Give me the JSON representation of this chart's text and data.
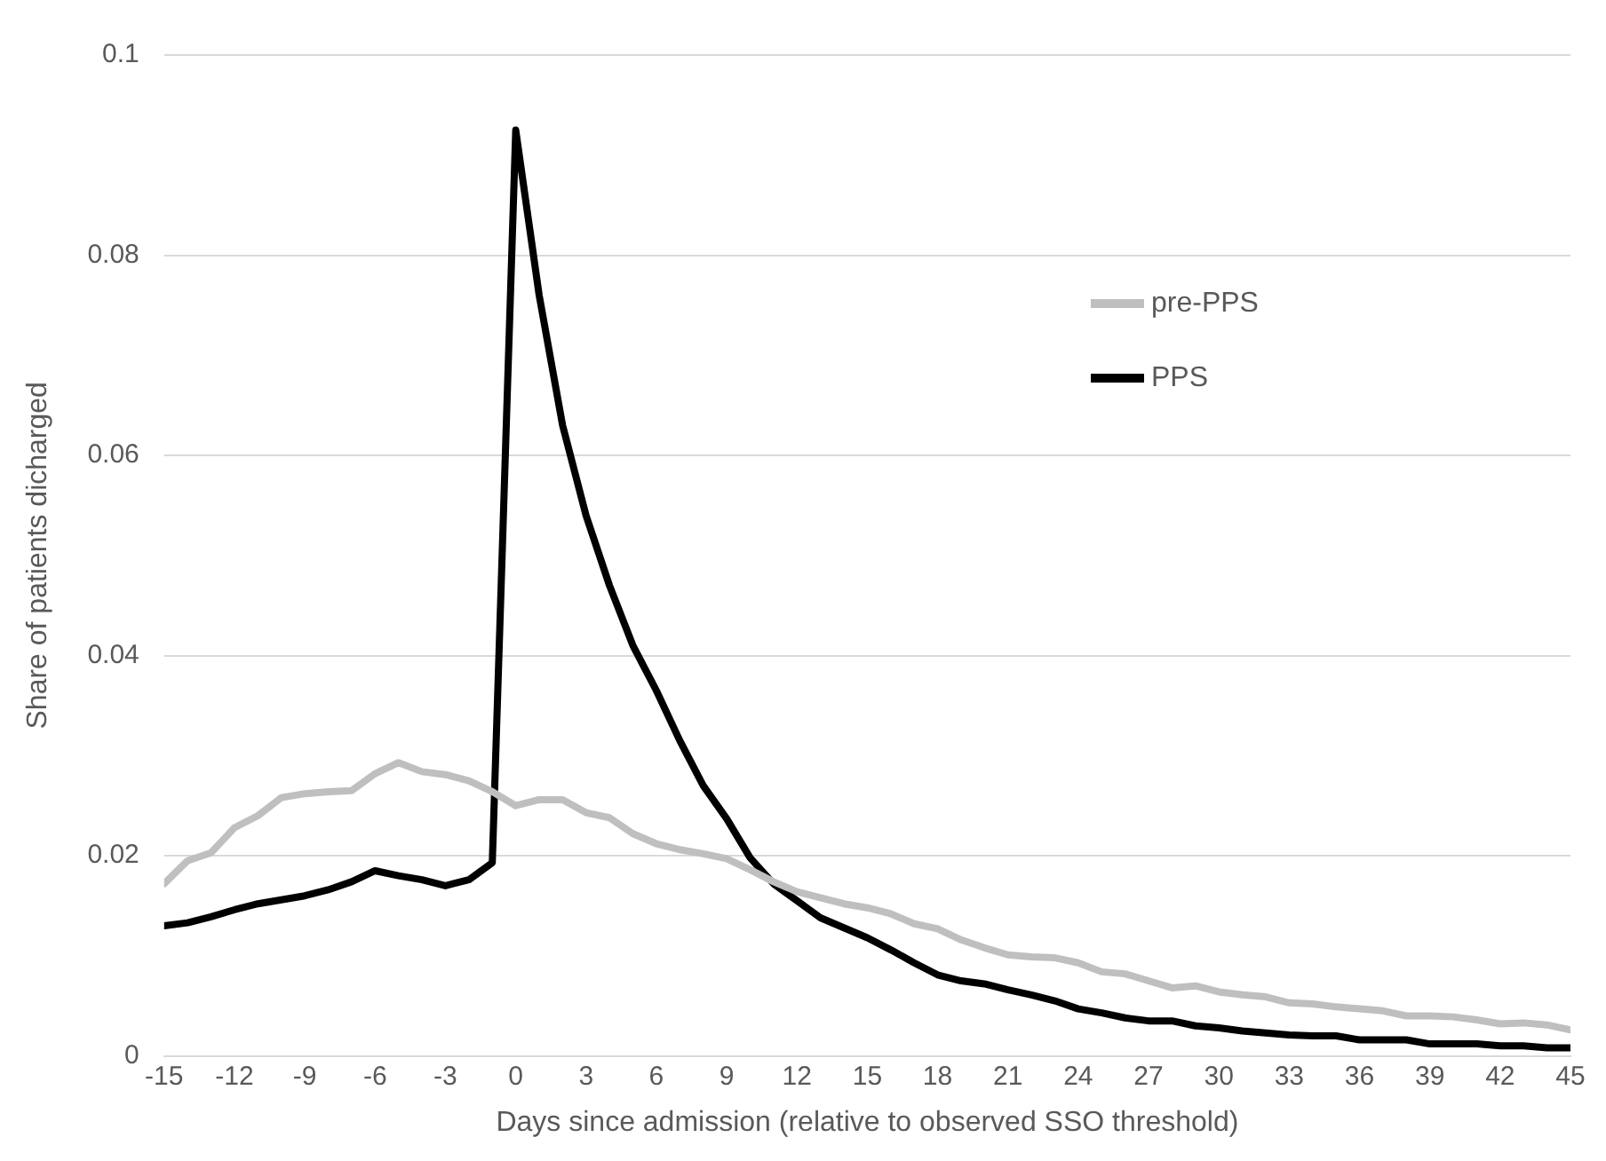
{
  "chart_data": {
    "type": "line",
    "xlabel": "Days since admission (relative to observed SSO threshold)",
    "ylabel": "Share of patients dicharged",
    "x": [
      -15,
      -14,
      -13,
      -12,
      -11,
      -10,
      -9,
      -8,
      -7,
      -6,
      -5,
      -4,
      -3,
      -2,
      -1,
      0,
      1,
      2,
      3,
      4,
      5,
      6,
      7,
      8,
      9,
      10,
      11,
      12,
      13,
      14,
      15,
      16,
      17,
      18,
      19,
      20,
      21,
      22,
      23,
      24,
      25,
      26,
      27,
      28,
      29,
      30,
      31,
      32,
      33,
      34,
      35,
      36,
      37,
      38,
      39,
      40,
      41,
      42,
      43,
      44,
      45
    ],
    "series": [
      {
        "name": "pre-PPS",
        "color": "#bfbfbf",
        "values": [
          0.0172,
          0.0195,
          0.0203,
          0.0228,
          0.024,
          0.0258,
          0.0262,
          0.0264,
          0.0265,
          0.0282,
          0.0293,
          0.0284,
          0.0281,
          0.0275,
          0.0264,
          0.025,
          0.0256,
          0.0256,
          0.0243,
          0.0238,
          0.0222,
          0.0212,
          0.0206,
          0.0202,
          0.0197,
          0.0186,
          0.0174,
          0.0164,
          0.0158,
          0.0152,
          0.0148,
          0.0142,
          0.0132,
          0.0127,
          0.0116,
          0.0108,
          0.0101,
          0.0099,
          0.0098,
          0.0093,
          0.0084,
          0.0082,
          0.0075,
          0.0068,
          0.007,
          0.0064,
          0.0061,
          0.0059,
          0.0053,
          0.0052,
          0.0049,
          0.0047,
          0.0045,
          0.004,
          0.004,
          0.0039,
          0.0036,
          0.0032,
          0.0033,
          0.0031,
          0.0026
        ]
      },
      {
        "name": "PPS",
        "color": "#000000",
        "values": [
          0.013,
          0.0133,
          0.0139,
          0.0146,
          0.0152,
          0.0156,
          0.016,
          0.0166,
          0.0174,
          0.0185,
          0.018,
          0.0176,
          0.017,
          0.0176,
          0.0193,
          0.0925,
          0.076,
          0.063,
          0.054,
          0.047,
          0.041,
          0.0365,
          0.0315,
          0.027,
          0.0237,
          0.0198,
          0.0172,
          0.0155,
          0.0138,
          0.0128,
          0.0118,
          0.0106,
          0.0093,
          0.0081,
          0.0075,
          0.0072,
          0.0066,
          0.0061,
          0.0055,
          0.0047,
          0.0043,
          0.0038,
          0.0035,
          0.0035,
          0.003,
          0.0028,
          0.0025,
          0.0023,
          0.0021,
          0.002,
          0.002,
          0.0016,
          0.0016,
          0.0016,
          0.0012,
          0.0012,
          0.0012,
          0.001,
          0.001,
          0.0008,
          0.0008
        ]
      }
    ],
    "xlim": [
      -15,
      45
    ],
    "xticks": [
      -15,
      -12,
      -9,
      -6,
      -3,
      0,
      3,
      6,
      9,
      12,
      15,
      18,
      21,
      24,
      27,
      30,
      33,
      36,
      39,
      42,
      45
    ],
    "ylim": [
      0,
      0.1
    ],
    "yticks": [
      0,
      0.02,
      0.04,
      0.06,
      0.08,
      0.1
    ],
    "grid": "y",
    "legend": "right",
    "marker": "none",
    "line_style": "solid"
  }
}
